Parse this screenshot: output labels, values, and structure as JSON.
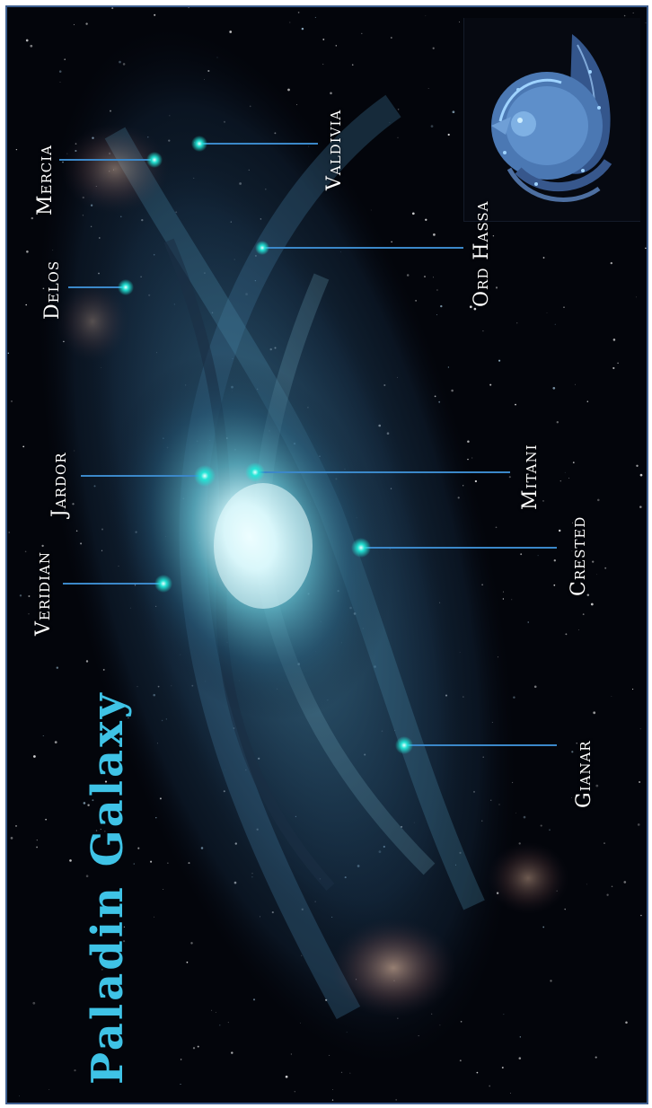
{
  "map": {
    "title": "Paladin Galaxy",
    "systems": [
      {
        "id": "mercia",
        "name": "Mercia"
      },
      {
        "id": "valdivia",
        "name": "Valdivia"
      },
      {
        "id": "delos",
        "name": "Delos"
      },
      {
        "id": "ord-hassa",
        "name": "Ord Hassa"
      },
      {
        "id": "jardor",
        "name": "Jardor"
      },
      {
        "id": "mitani",
        "name": "Mitani"
      },
      {
        "id": "veridian",
        "name": "Veridian"
      },
      {
        "id": "crested",
        "name": "Crested"
      },
      {
        "id": "gianar",
        "name": "Gianar"
      }
    ],
    "colors": {
      "title": "#3fc3e6",
      "marker": "#21e8d8",
      "leader_line": "#3b88c9",
      "border": "#3e5f8f",
      "space": "#03050b",
      "core": "#d9fbff"
    },
    "icons": {
      "emblem": "blue-dragon-emblem-icon"
    }
  }
}
